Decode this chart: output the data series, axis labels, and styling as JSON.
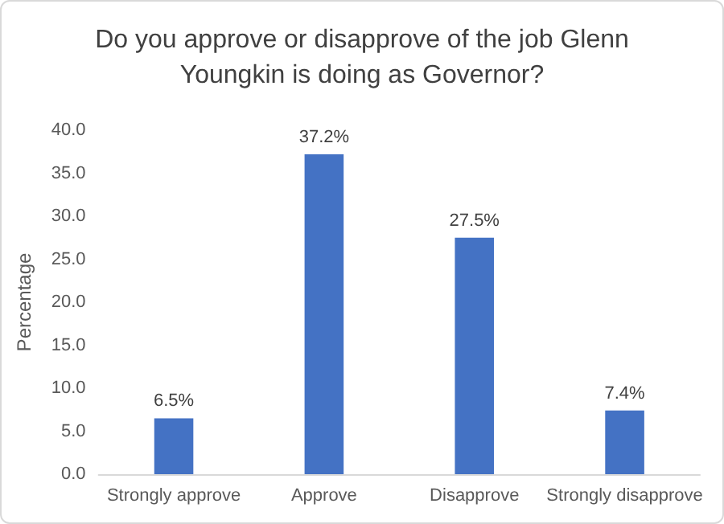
{
  "chart_data": {
    "type": "bar",
    "title": "Do you approve or disapprove of the job Glenn\nYoungkin is doing as Governor?",
    "ylabel": "Percentage",
    "categories": [
      "Strongly approve",
      "Approve",
      "Disapprove",
      "Strongly disapprove"
    ],
    "values": [
      6.5,
      37.2,
      27.5,
      7.4
    ],
    "value_labels": [
      "6.5%",
      "37.2%",
      "27.5%",
      "7.4%"
    ],
    "color": "#4472c4",
    "ylim": [
      0,
      40
    ],
    "yticks": [
      {
        "value": 0,
        "label": "0.0"
      },
      {
        "value": 5,
        "label": "5.0"
      },
      {
        "value": 10,
        "label": "10.0"
      },
      {
        "value": 15,
        "label": "15.0"
      },
      {
        "value": 20,
        "label": "20.0"
      },
      {
        "value": 25,
        "label": "25.0"
      },
      {
        "value": 30,
        "label": "30.0"
      },
      {
        "value": 35,
        "label": "35.0"
      },
      {
        "value": 40,
        "label": "40.0"
      }
    ],
    "grid": false
  }
}
